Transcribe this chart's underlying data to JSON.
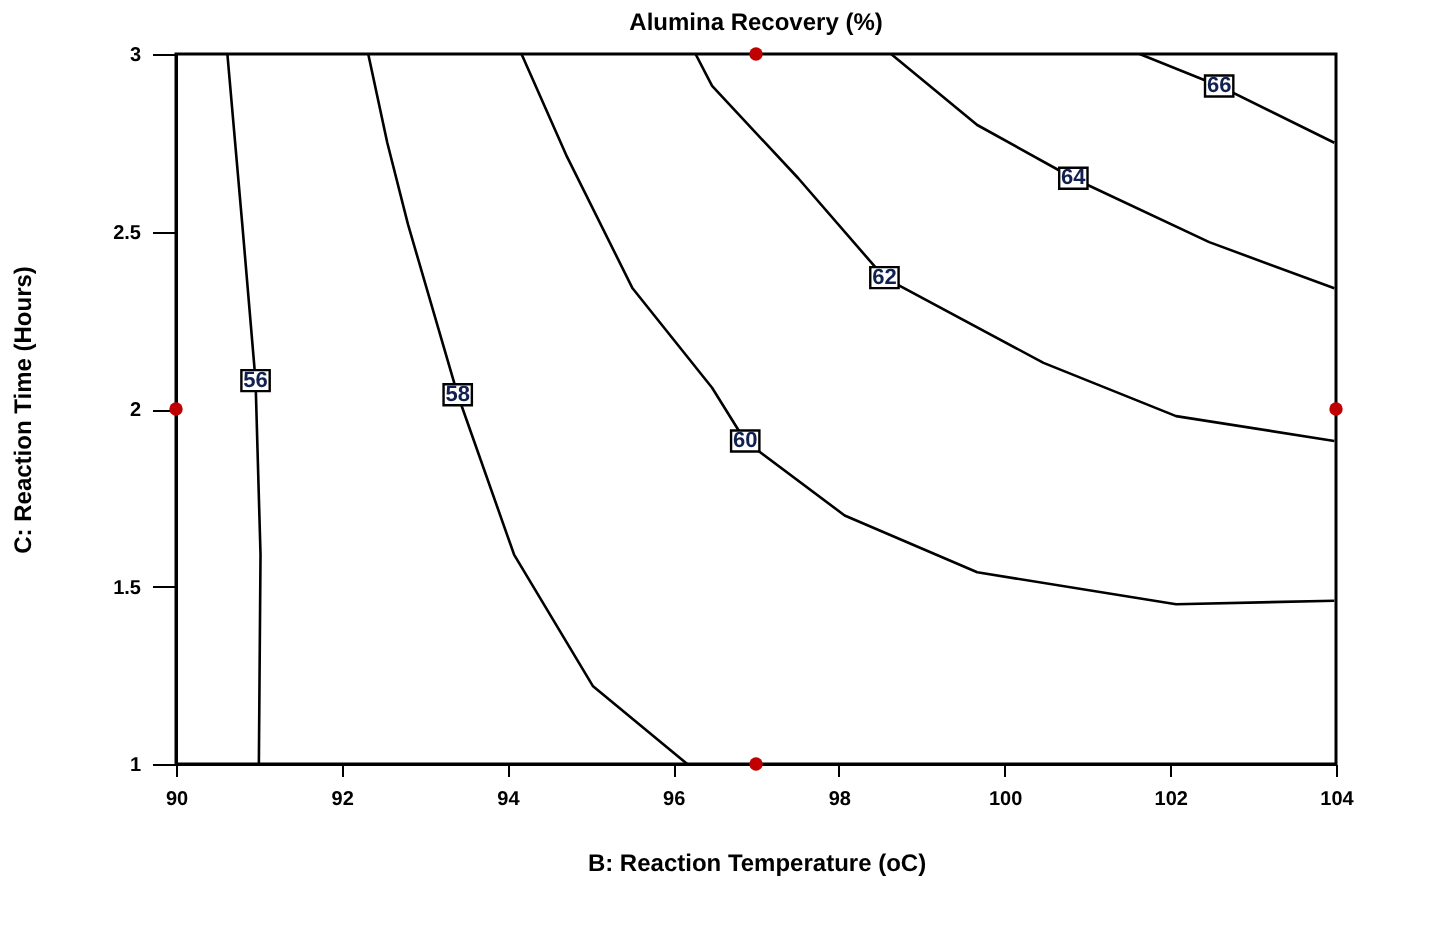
{
  "chart_data": {
    "type": "line",
    "title": "Alumina Recovery (%)",
    "xlabel": "B: Reaction Temperature (oC)",
    "ylabel": "C: Reaction Time (Hours)",
    "xlim": [
      90,
      104
    ],
    "xticks": [
      90,
      92,
      94,
      96,
      98,
      100,
      102,
      104
    ],
    "ylim": [
      1,
      3
    ],
    "yticks": [
      1,
      1.5,
      2,
      2.5,
      3
    ],
    "grid": false,
    "line_style": "solid",
    "series": [
      {
        "name": "56",
        "color": "#000000",
        "x": [
          90.62,
          90.8,
          90.96,
          91.02,
          91.0
        ],
        "values": [
          3,
          2.52,
          2.08,
          1.59,
          1.0
        ]
      },
      {
        "name": "58",
        "color": "#000000",
        "x": [
          92.32,
          92.55,
          92.8,
          93.4,
          94.08,
          95.03,
          96.17
        ],
        "values": [
          3,
          2.75,
          2.52,
          2.04,
          1.59,
          1.22,
          1.0
        ]
      },
      {
        "name": "60",
        "color": "#000000",
        "x": [
          94.17,
          94.72,
          95.51,
          96.47,
          96.87,
          98.07,
          99.67,
          102.07,
          103.98
        ],
        "values": [
          3,
          2.71,
          2.34,
          2.06,
          1.91,
          1.7,
          1.54,
          1.45,
          1.46
        ]
      },
      {
        "name": "62",
        "color": "#000000",
        "x": [
          96.27,
          96.47,
          97.51,
          98.55,
          100.47,
          102.07,
          103.98
        ],
        "values": [
          3,
          2.91,
          2.65,
          2.37,
          2.13,
          1.98,
          1.91
        ]
      },
      {
        "name": "64",
        "color": "#000000",
        "x": [
          98.63,
          99.67,
          100.83,
          102.47,
          103.98
        ],
        "values": [
          3,
          2.8,
          2.65,
          2.47,
          2.34
        ]
      },
      {
        "name": "66",
        "color": "#000000",
        "x": [
          101.63,
          102.59,
          103.98
        ],
        "values": [
          3,
          2.91,
          2.75
        ]
      },
      {
        "type": "scatter",
        "marker": "circle",
        "color": "#c00000",
        "x": [
          90,
          97,
          97,
          104
        ],
        "values": [
          2,
          3,
          1,
          2
        ]
      }
    ]
  }
}
